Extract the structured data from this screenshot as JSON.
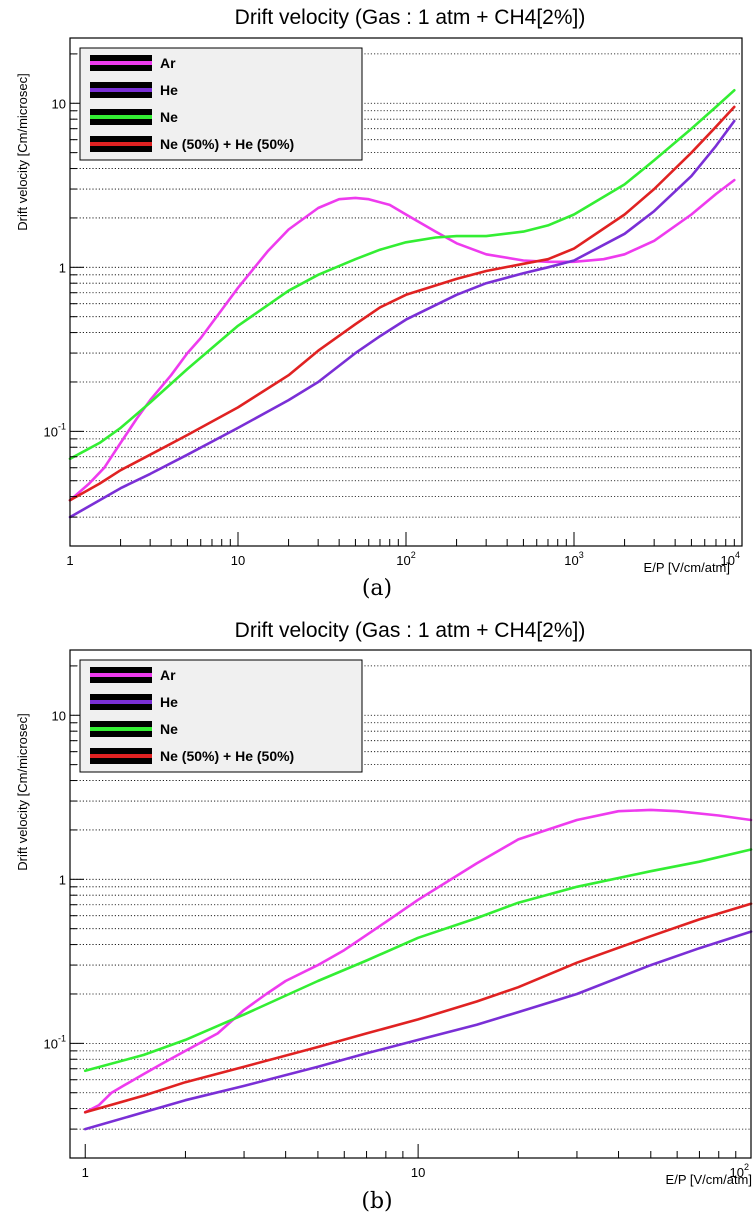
{
  "chart_data": [
    {
      "type": "line",
      "title": "Drift velocity (Gas : 1 atm + CH4[2%])",
      "xlabel": "E/P [V/cm/atm]",
      "ylabel": "Drift velocity [Cm/microsec]",
      "xscale": "log",
      "yscale": "log",
      "xlim": [
        1,
        10000
      ],
      "ylim": [
        0.02,
        25
      ],
      "x_ticks": [
        {
          "value": 1,
          "base": "1",
          "exp": ""
        },
        {
          "value": 10,
          "base": "10",
          "exp": ""
        },
        {
          "value": 100,
          "base": "10",
          "exp": "2"
        },
        {
          "value": 1000,
          "base": "10",
          "exp": "3"
        },
        {
          "value": 10000,
          "base": "10",
          "exp": "4"
        }
      ],
      "y_ticks": [
        {
          "value": 0.1,
          "base": "10",
          "exp": "-1"
        },
        {
          "value": 1,
          "base": "1",
          "exp": ""
        },
        {
          "value": 10,
          "base": "10",
          "exp": ""
        }
      ],
      "grid": "horizontal dotted",
      "legend_position": "top-left",
      "caption": "(a)",
      "series": [
        {
          "name": "Ar",
          "color": "#ee3bee",
          "x": [
            1,
            1.3,
            1.6,
            2,
            2.5,
            3,
            4,
            5,
            6,
            8,
            10,
            15,
            20,
            30,
            40,
            50,
            60,
            80,
            100,
            150,
            200,
            300,
            500,
            700,
            1000,
            1500,
            2000,
            3000,
            5000,
            7000,
            9000
          ],
          "y": [
            0.038,
            0.048,
            0.06,
            0.085,
            0.12,
            0.155,
            0.22,
            0.3,
            0.37,
            0.55,
            0.75,
            1.25,
            1.7,
            2.3,
            2.6,
            2.65,
            2.6,
            2.4,
            2.1,
            1.65,
            1.4,
            1.2,
            1.1,
            1.08,
            1.08,
            1.12,
            1.2,
            1.45,
            2.1,
            2.8,
            3.4
          ]
        },
        {
          "name": "He",
          "color": "#7a2fd6",
          "x": [
            1,
            1.5,
            2,
            3,
            5,
            10,
            20,
            30,
            50,
            70,
            100,
            200,
            300,
            500,
            700,
            1000,
            2000,
            3000,
            5000,
            7000,
            9000
          ],
          "y": [
            0.03,
            0.038,
            0.045,
            0.055,
            0.072,
            0.105,
            0.155,
            0.2,
            0.3,
            0.38,
            0.48,
            0.68,
            0.8,
            0.92,
            1.0,
            1.1,
            1.6,
            2.2,
            3.6,
            5.5,
            7.8
          ]
        },
        {
          "name": "Ne",
          "color": "#33ee33",
          "x": [
            1,
            1.5,
            2,
            3,
            5,
            10,
            20,
            30,
            50,
            70,
            100,
            150,
            200,
            300,
            500,
            700,
            1000,
            2000,
            3000,
            5000,
            7000,
            9000
          ],
          "y": [
            0.068,
            0.085,
            0.105,
            0.15,
            0.24,
            0.44,
            0.72,
            0.9,
            1.12,
            1.28,
            1.42,
            1.52,
            1.55,
            1.55,
            1.65,
            1.8,
            2.1,
            3.2,
            4.5,
            7.0,
            9.5,
            12.0
          ]
        },
        {
          "name": "Ne (50%) + He (50%)",
          "color": "#e02222",
          "x": [
            1,
            1.5,
            2,
            3,
            5,
            10,
            20,
            30,
            50,
            70,
            100,
            200,
            300,
            500,
            700,
            1000,
            2000,
            3000,
            5000,
            7000,
            9000
          ],
          "y": [
            0.038,
            0.048,
            0.058,
            0.072,
            0.095,
            0.14,
            0.22,
            0.31,
            0.45,
            0.57,
            0.68,
            0.85,
            0.95,
            1.05,
            1.12,
            1.3,
            2.1,
            3.0,
            5.0,
            7.2,
            9.5
          ]
        }
      ]
    },
    {
      "type": "line",
      "title": "Drift velocity (Gas : 1 atm + CH4[2%])",
      "xlabel": "E/P [V/cm/atm]",
      "ylabel": "Drift velocity [Cm/microsec]",
      "xscale": "log",
      "yscale": "log",
      "xlim": [
        0.9,
        100
      ],
      "ylim": [
        0.02,
        25
      ],
      "x_ticks": [
        {
          "value": 1,
          "base": "1",
          "exp": ""
        },
        {
          "value": 10,
          "base": "10",
          "exp": ""
        },
        {
          "value": 100,
          "base": "10",
          "exp": "2"
        }
      ],
      "y_ticks": [
        {
          "value": 0.1,
          "base": "10",
          "exp": "-1"
        },
        {
          "value": 1,
          "base": "1",
          "exp": ""
        },
        {
          "value": 10,
          "base": "10",
          "exp": ""
        }
      ],
      "grid": "horizontal dotted",
      "legend_position": "top-left",
      "caption": "(b)",
      "series": [
        {
          "name": "Ar",
          "color": "#ee3bee",
          "x": [
            1,
            1.1,
            1.2,
            1.3,
            1.5,
            1.7,
            2,
            2.5,
            3,
            3.5,
            4,
            5,
            6,
            8,
            10,
            15,
            20,
            30,
            40,
            50,
            60,
            80,
            100
          ],
          "y": [
            0.038,
            0.042,
            0.05,
            0.055,
            0.065,
            0.075,
            0.09,
            0.115,
            0.16,
            0.2,
            0.24,
            0.3,
            0.37,
            0.55,
            0.75,
            1.25,
            1.75,
            2.3,
            2.6,
            2.65,
            2.6,
            2.45,
            2.3
          ]
        },
        {
          "name": "He",
          "color": "#7a2fd6",
          "x": [
            1,
            1.5,
            2,
            3,
            5,
            7,
            10,
            15,
            20,
            30,
            50,
            70,
            100
          ],
          "y": [
            0.03,
            0.038,
            0.045,
            0.055,
            0.072,
            0.087,
            0.105,
            0.13,
            0.155,
            0.2,
            0.3,
            0.38,
            0.48
          ]
        },
        {
          "name": "Ne",
          "color": "#33ee33",
          "x": [
            1,
            1.5,
            2,
            3,
            5,
            7,
            10,
            15,
            20,
            30,
            50,
            70,
            100
          ],
          "y": [
            0.068,
            0.085,
            0.105,
            0.15,
            0.24,
            0.32,
            0.44,
            0.58,
            0.72,
            0.9,
            1.12,
            1.28,
            1.52
          ]
        },
        {
          "name": "Ne (50%) + He (50%)",
          "color": "#e02222",
          "x": [
            1,
            1.5,
            2,
            3,
            5,
            7,
            10,
            15,
            20,
            30,
            50,
            70,
            100
          ],
          "y": [
            0.038,
            0.048,
            0.058,
            0.072,
            0.095,
            0.115,
            0.14,
            0.18,
            0.22,
            0.31,
            0.45,
            0.57,
            0.71
          ]
        }
      ]
    }
  ]
}
